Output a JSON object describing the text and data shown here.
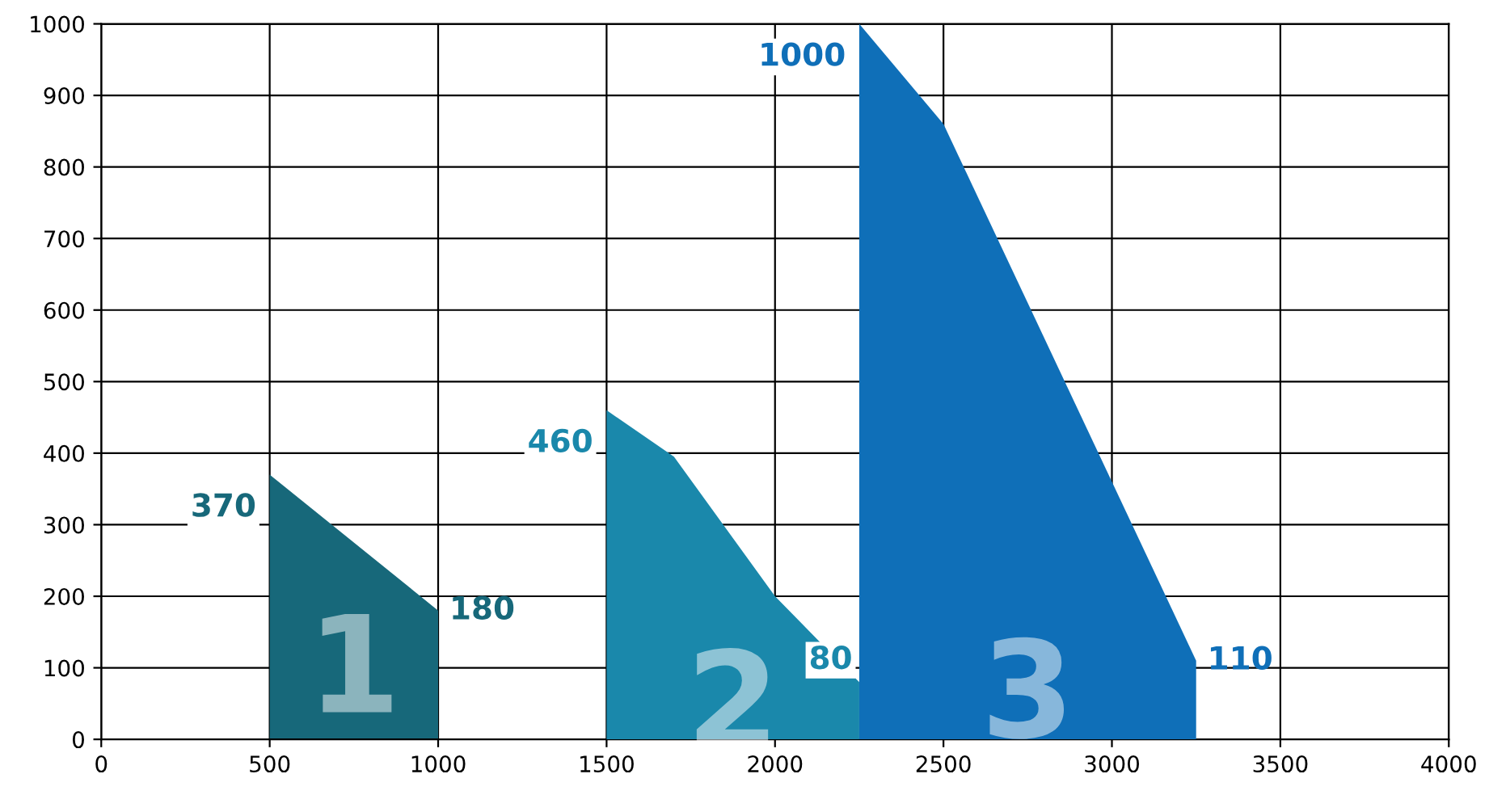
{
  "chart_data": {
    "type": "area",
    "xlim": [
      0,
      4000
    ],
    "ylim": [
      0,
      1000
    ],
    "xticks": [
      0,
      500,
      1000,
      1500,
      2000,
      2500,
      3000,
      3500,
      4000
    ],
    "yticks": [
      0,
      100,
      200,
      300,
      400,
      500,
      600,
      700,
      800,
      900,
      1000
    ],
    "grid": true,
    "legend": false,
    "series": [
      {
        "name": "1",
        "color": "#17687a",
        "x": [
          500,
          1000
        ],
        "values": [
          370,
          180
        ],
        "value_labels": [
          "370",
          "180"
        ]
      },
      {
        "name": "2",
        "color": "#1a88ab",
        "x": [
          1500,
          1700,
          2000,
          2250
        ],
        "values": [
          460,
          395,
          200,
          80
        ],
        "value_labels": [
          "460",
          null,
          null,
          "80"
        ]
      },
      {
        "name": "3",
        "color": "#0f6fb8",
        "x": [
          2250,
          2500,
          3250
        ],
        "values": [
          1000,
          860,
          110
        ],
        "value_labels": [
          "1000",
          null,
          "110"
        ]
      }
    ]
  }
}
